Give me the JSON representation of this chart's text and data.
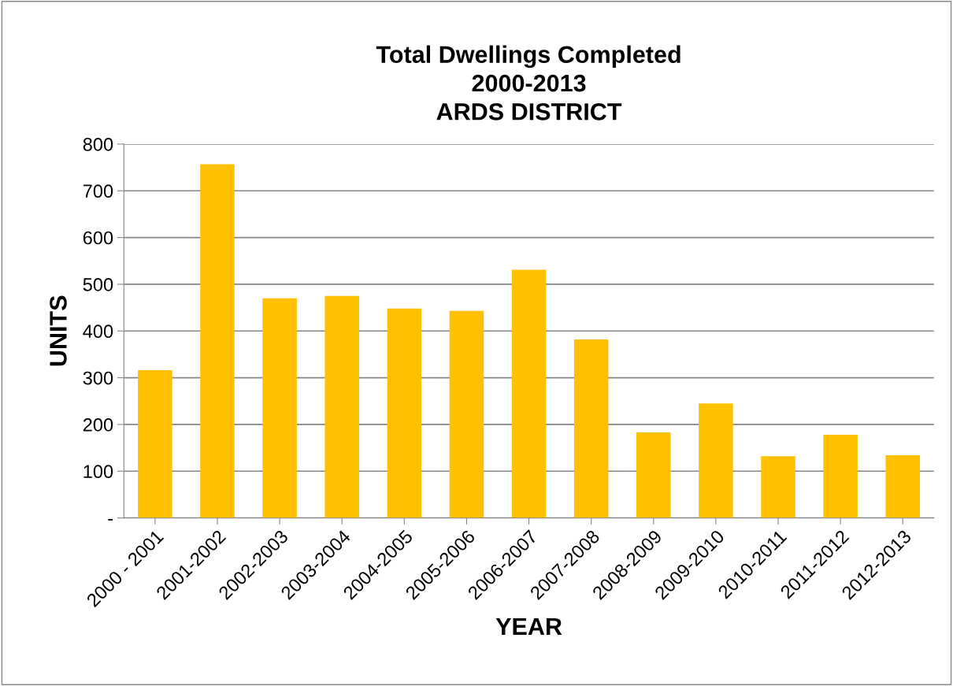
{
  "chart_data": {
    "type": "bar",
    "title": "Total Dwellings Completed\n2000-2013\nARDS DISTRICT",
    "xlabel": "YEAR",
    "ylabel": "UNITS",
    "categories": [
      "2000 - 2001",
      "2001-2002",
      "2002-2003",
      "2003-2004",
      "2004-2005",
      "2005-2006",
      "2006-2007",
      "2007-2008",
      "2008-2009",
      "2009-2010",
      "2010-2011",
      "2011-2012",
      "2012-2013"
    ],
    "values": [
      316,
      757,
      470,
      475,
      448,
      443,
      531,
      382,
      183,
      245,
      132,
      178,
      134
    ],
    "color": "#ffc000",
    "ylim": [
      0,
      800
    ],
    "yticks": [
      {
        "value": 0,
        "label": "-"
      },
      100,
      200,
      300,
      400,
      500,
      600,
      700,
      800
    ],
    "grid": "y"
  }
}
